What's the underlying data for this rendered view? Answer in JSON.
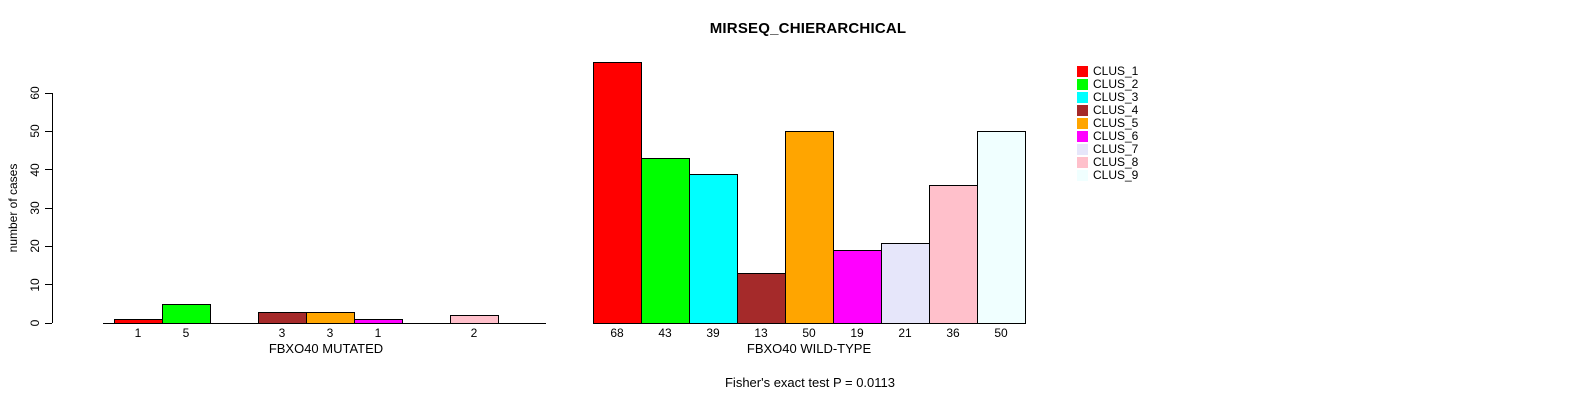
{
  "chart_data": {
    "type": "bar",
    "title": "MIRSEQ_CHIERARCHICAL",
    "ylabel": "number of cases",
    "ylim": [
      0,
      60
    ],
    "yticks": [
      0,
      10,
      20,
      30,
      40,
      50,
      60
    ],
    "annotation": "Fisher's exact test P = 0.0113",
    "grid": false,
    "legend": {
      "position": "right",
      "entries": [
        {
          "label": "CLUS_1",
          "color": "#FF0000"
        },
        {
          "label": "CLUS_2",
          "color": "#00FF00"
        },
        {
          "label": "CLUS_3",
          "color": "#00FFFF"
        },
        {
          "label": "CLUS_4",
          "color": "#A52A2A"
        },
        {
          "label": "CLUS_5",
          "color": "#FFA500"
        },
        {
          "label": "CLUS_6",
          "color": "#FF00FF"
        },
        {
          "label": "CLUS_7",
          "color": "#E6E6FA"
        },
        {
          "label": "CLUS_8",
          "color": "#FFC0CB"
        },
        {
          "label": "CLUS_9",
          "color": "#F0FFFF"
        }
      ]
    },
    "panels": [
      {
        "xlabel": "FBXO40 MUTATED",
        "values": [
          1,
          5,
          0,
          3,
          3,
          1,
          0,
          2,
          0
        ],
        "bar_labels": [
          "1",
          "5",
          "",
          "3",
          "3",
          "1",
          "",
          "2",
          ""
        ]
      },
      {
        "xlabel": "FBXO40 WILD-TYPE",
        "values": [
          68,
          43,
          39,
          13,
          50,
          19,
          21,
          36,
          50
        ],
        "bar_labels": [
          "68",
          "43",
          "39",
          "13",
          "50",
          "19",
          "21",
          "36",
          "50"
        ]
      }
    ]
  }
}
